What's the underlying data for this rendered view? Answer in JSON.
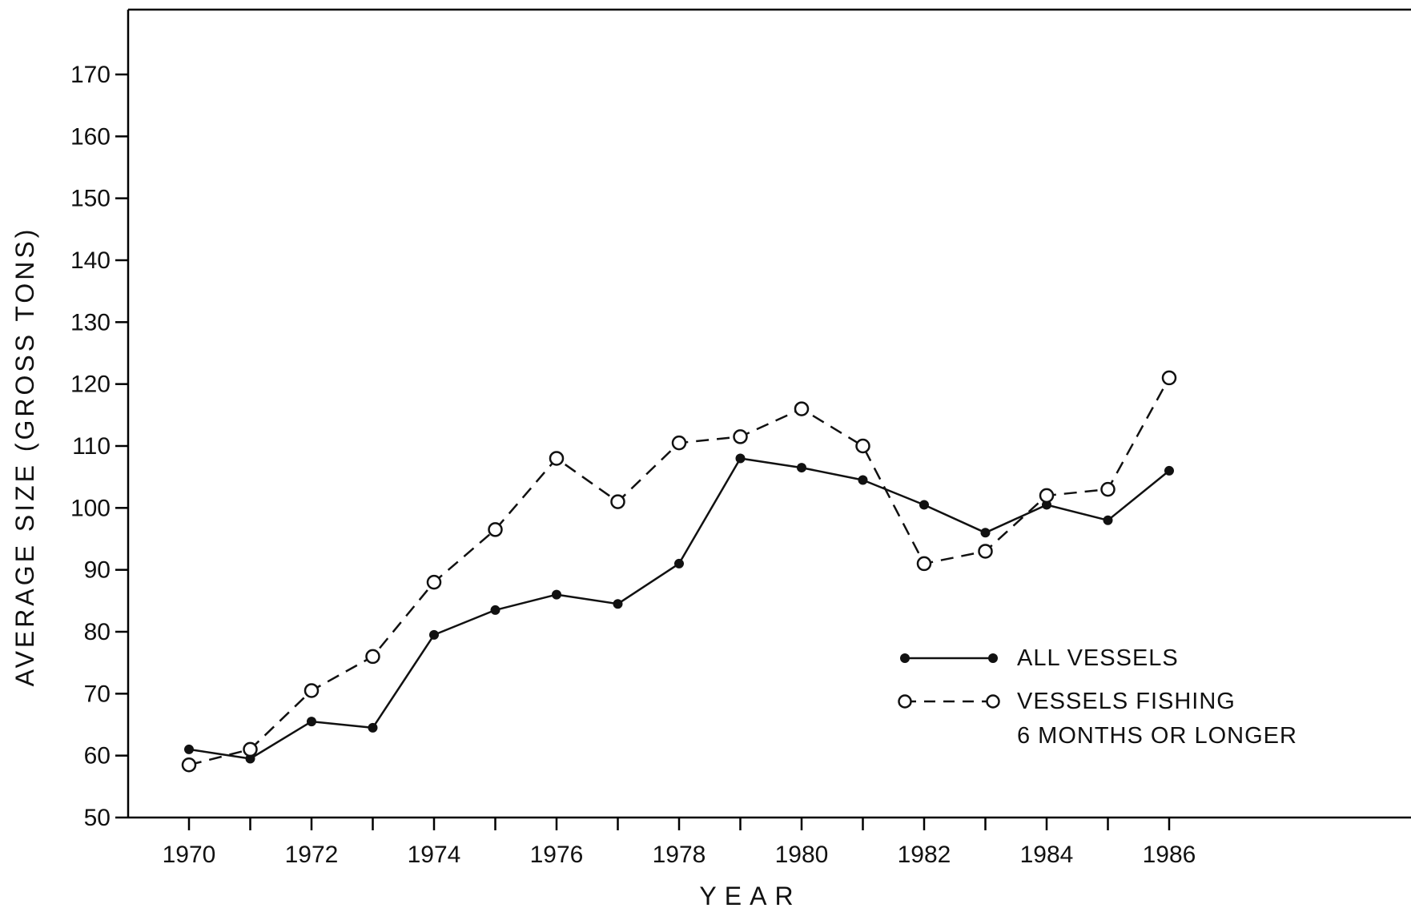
{
  "chart_data": {
    "type": "line",
    "title": "",
    "xlabel": "YEAR",
    "ylabel": "AVERAGE SIZE (GROSS TONS)",
    "ylim": [
      50,
      170
    ],
    "xlim": [
      1970,
      1986
    ],
    "y_ticks": [
      "50",
      "60",
      "70",
      "80",
      "90",
      "100",
      "110",
      "120",
      "130",
      "140",
      "150",
      "160",
      "170"
    ],
    "x_tick_labels": [
      "1970",
      "1972",
      "1974",
      "1976",
      "1978",
      "1980",
      "1982",
      "1984",
      "1986"
    ],
    "grid": false,
    "legend_position": "lower-right",
    "x": [
      1970,
      1971,
      1972,
      1973,
      1974,
      1975,
      1976,
      1977,
      1978,
      1979,
      1980,
      1981,
      1982,
      1983,
      1984,
      1985,
      1986
    ],
    "series": [
      {
        "name": "ALL VESSELS",
        "style": "solid",
        "marker": "filled-circle",
        "values": [
          61.0,
          59.5,
          65.5,
          64.5,
          79.5,
          83.5,
          86.0,
          84.5,
          91.0,
          108.0,
          106.5,
          104.5,
          100.5,
          96.0,
          100.5,
          98.0,
          106.0
        ]
      },
      {
        "name": "VESSELS FISHING 6 MONTHS OR LONGER",
        "style": "dashed",
        "marker": "open-circle",
        "values": [
          58.5,
          61.0,
          70.5,
          76.0,
          88.0,
          96.5,
          108.0,
          101.0,
          110.5,
          111.5,
          116.0,
          110.0,
          91.0,
          93.0,
          102.0,
          103.0,
          121.0
        ]
      }
    ],
    "legend": {
      "line1": "ALL VESSELS",
      "line2a": "VESSELS FISHING",
      "line2b": "6 MONTHS OR LONGER"
    },
    "colors": {
      "ink": "#111111",
      "background": "#ffffff"
    }
  }
}
